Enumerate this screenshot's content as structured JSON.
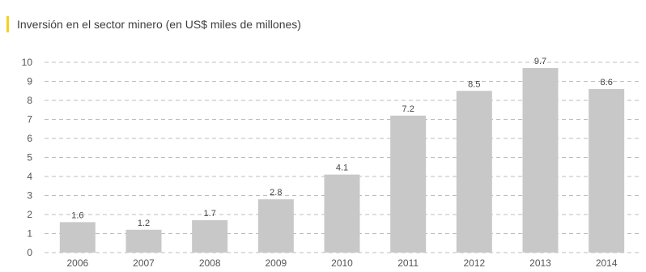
{
  "chart_data": {
    "type": "bar",
    "title": "Inversión en el sector minero (en US$ miles de millones)",
    "xlabel": "",
    "ylabel": "",
    "categories": [
      "2006",
      "2007",
      "2008",
      "2009",
      "2010",
      "2011",
      "2012",
      "2013",
      "2014"
    ],
    "values": [
      1.6,
      1.2,
      1.7,
      2.8,
      4.1,
      7.2,
      8.5,
      9.7,
      8.6
    ],
    "data_labels": [
      "1.6",
      "1.2",
      "1.7",
      "2.8",
      "4.1",
      "7.2",
      "8.5",
      "9.7",
      "8.6"
    ],
    "ylim": [
      0,
      10
    ],
    "yticks": [
      "0",
      "1",
      "2",
      "3",
      "4",
      "5",
      "6",
      "7",
      "8",
      "9",
      "10"
    ],
    "grid": true,
    "legend": "none",
    "colors": {
      "bar": "#c8c8c8",
      "accent": "#f2d21a",
      "grid": "#bdbdbd"
    }
  }
}
